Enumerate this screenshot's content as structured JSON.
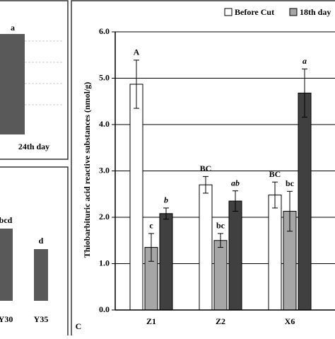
{
  "chart_data": [
    {
      "type": "bar",
      "categories": [
        "24th day"
      ],
      "letters": [
        "a"
      ]
    },
    {
      "type": "bar",
      "categories": [
        "Y30",
        "Y35"
      ],
      "letters": [
        "bcd",
        "d"
      ]
    },
    {
      "type": "bar",
      "panel": "C",
      "ylabel": "Thiobarbituric acid reactive substances (nmol/g)",
      "categories": [
        "Z1",
        "Z2",
        "X6"
      ],
      "series": [
        {
          "name": "Before Cut",
          "color": "#ffffff",
          "values": [
            4.87,
            2.7,
            2.48
          ],
          "errors": [
            0.52,
            0.18,
            0.28
          ],
          "letters": [
            "A",
            "BC",
            "BC"
          ]
        },
        {
          "name": "18th day",
          "color": "#a6a6a6",
          "values": [
            1.35,
            1.5,
            2.13
          ],
          "errors": [
            0.3,
            0.15,
            0.43
          ],
          "letters": [
            "c",
            "bc",
            "bc"
          ]
        },
        {
          "color": "#404040",
          "values": [
            2.08,
            2.35,
            4.68
          ],
          "errors": [
            0.12,
            0.22,
            0.52
          ],
          "letters": [
            "b",
            "ab",
            "a"
          ]
        }
      ],
      "ylim": [
        0,
        6
      ],
      "yticks": [
        {
          "value": 0,
          "label": "0.0"
        },
        {
          "value": 1,
          "label": "1.0"
        },
        {
          "value": 2,
          "label": "2.0"
        },
        {
          "value": 3,
          "label": "3.0"
        },
        {
          "value": 4,
          "label": "4.0"
        },
        {
          "value": 5,
          "label": "5.0"
        },
        {
          "value": 6,
          "label": "6.0"
        }
      ],
      "grid": true
    }
  ]
}
